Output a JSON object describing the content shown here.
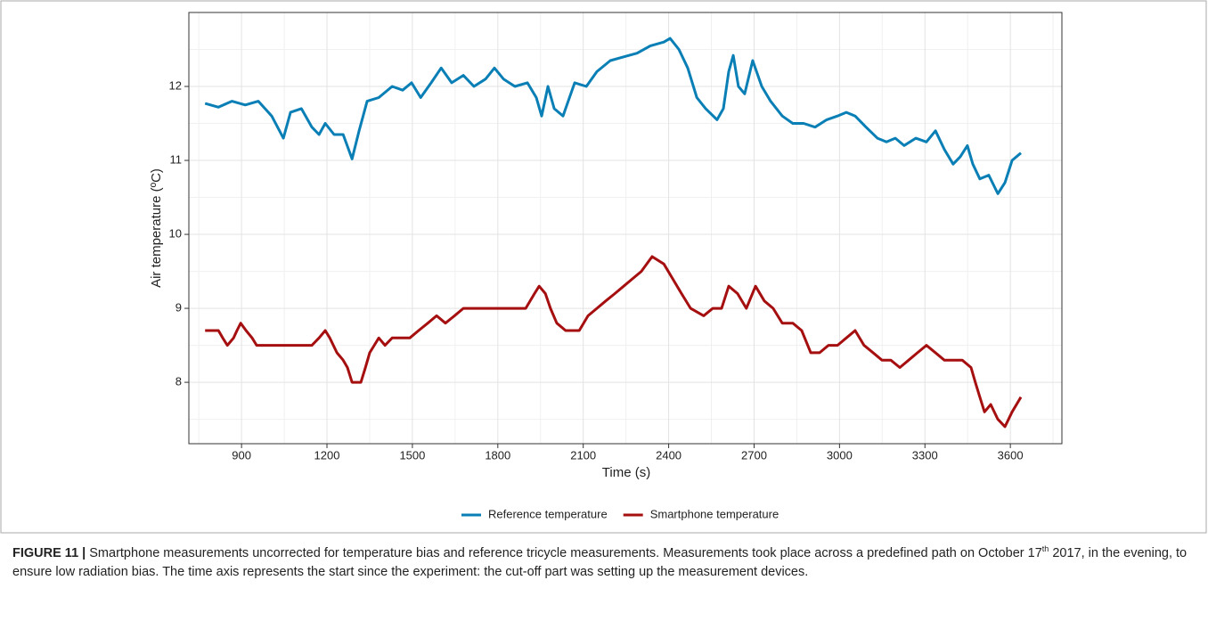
{
  "chart_data": {
    "type": "line",
    "xlabel": "Time (s)",
    "ylabel": "Air temperature (ºC)",
    "xlim": [
      715,
      3781
    ],
    "ylim": [
      7.17,
      13.0
    ],
    "xticks": [
      900,
      1200,
      1500,
      1800,
      2100,
      2400,
      2700,
      3000,
      3300,
      3600
    ],
    "yticks": [
      8,
      9,
      10,
      11,
      12
    ],
    "grid": true,
    "legend": "bottom",
    "series": [
      {
        "name": "Reference temperature",
        "color": "#0a7fb5",
        "x": [
          772,
          819,
          866,
          913,
          959,
          1006,
          1047,
          1072,
          1110,
          1147,
          1172,
          1194,
          1225,
          1257,
          1288,
          1313,
          1341,
          1382,
          1429,
          1466,
          1497,
          1529,
          1566,
          1601,
          1638,
          1679,
          1716,
          1757,
          1788,
          1820,
          1860,
          1904,
          1935,
          1954,
          1976,
          1998,
          2029,
          2070,
          2111,
          2148,
          2195,
          2242,
          2289,
          2336,
          2383,
          2405,
          2436,
          2467,
          2499,
          2530,
          2570,
          2592,
          2611,
          2627,
          2645,
          2667,
          2695,
          2727,
          2758,
          2799,
          2836,
          2874,
          2914,
          2955,
          2993,
          3024,
          3055,
          3093,
          3133,
          3165,
          3196,
          3227,
          3268,
          3305,
          3337,
          3368,
          3399,
          3424,
          3449,
          3468,
          3493,
          3524,
          3556,
          3581,
          3606,
          3637
        ],
        "values": [
          11.77,
          11.72,
          11.8,
          11.75,
          11.8,
          11.6,
          11.3,
          11.65,
          11.7,
          11.45,
          11.35,
          11.5,
          11.35,
          11.35,
          11.02,
          11.4,
          11.8,
          11.85,
          12.0,
          11.95,
          12.05,
          11.85,
          12.05,
          12.25,
          12.05,
          12.15,
          12.0,
          12.1,
          12.25,
          12.1,
          12.0,
          12.05,
          11.85,
          11.6,
          12.0,
          11.7,
          11.6,
          12.05,
          12.0,
          12.2,
          12.35,
          12.4,
          12.45,
          12.55,
          12.6,
          12.65,
          12.5,
          12.25,
          11.85,
          11.7,
          11.55,
          11.7,
          12.2,
          12.42,
          12.0,
          11.9,
          12.35,
          12.0,
          11.8,
          11.6,
          11.5,
          11.5,
          11.45,
          11.55,
          11.6,
          11.65,
          11.6,
          11.45,
          11.3,
          11.25,
          11.3,
          11.2,
          11.3,
          11.25,
          11.4,
          11.15,
          10.95,
          11.05,
          11.2,
          10.95,
          10.75,
          10.8,
          10.55,
          10.7,
          11.0,
          11.1
        ]
      },
      {
        "name": "Smartphone temperature",
        "color": "#a50f0f",
        "x": [
          772,
          819,
          834,
          850,
          872,
          884,
          897,
          916,
          937,
          953,
          1147,
          1172,
          1194,
          1210,
          1235,
          1257,
          1272,
          1288,
          1319,
          1335,
          1350,
          1366,
          1382,
          1404,
          1429,
          1491,
          1522,
          1554,
          1585,
          1616,
          1648,
          1679,
          1898,
          1929,
          1945,
          1967,
          1985,
          2007,
          2038,
          2086,
          2117,
          2148,
          2179,
          2211,
          2242,
          2273,
          2304,
          2342,
          2383,
          2414,
          2445,
          2477,
          2523,
          2555,
          2586,
          2611,
          2642,
          2673,
          2705,
          2736,
          2767,
          2799,
          2836,
          2867,
          2899,
          2930,
          2961,
          2993,
          3024,
          3055,
          3086,
          3118,
          3149,
          3180,
          3212,
          3243,
          3274,
          3305,
          3337,
          3368,
          3431,
          3462,
          3477,
          3493,
          3509,
          3531,
          3556,
          3581,
          3606,
          3637
        ],
        "values": [
          8.7,
          8.7,
          8.6,
          8.5,
          8.6,
          8.7,
          8.8,
          8.7,
          8.6,
          8.5,
          8.5,
          8.6,
          8.7,
          8.6,
          8.4,
          8.3,
          8.2,
          8.0,
          8.0,
          8.2,
          8.4,
          8.5,
          8.6,
          8.5,
          8.6,
          8.6,
          8.7,
          8.8,
          8.9,
          8.8,
          8.9,
          9.0,
          9.0,
          9.2,
          9.3,
          9.2,
          9.0,
          8.8,
          8.7,
          8.7,
          8.9,
          9.0,
          9.1,
          9.2,
          9.3,
          9.4,
          9.5,
          9.7,
          9.6,
          9.4,
          9.2,
          9.0,
          8.9,
          9.0,
          9.0,
          9.3,
          9.2,
          9.0,
          9.3,
          9.1,
          9.0,
          8.8,
          8.8,
          8.7,
          8.4,
          8.4,
          8.5,
          8.5,
          8.6,
          8.7,
          8.5,
          8.4,
          8.3,
          8.3,
          8.2,
          8.3,
          8.4,
          8.5,
          8.4,
          8.3,
          8.3,
          8.2,
          8.0,
          7.8,
          7.6,
          7.7,
          7.5,
          7.4,
          7.6,
          7.8
        ]
      }
    ]
  },
  "caption": {
    "label": "FIGURE 11 |",
    "text_before": "Smartphone measurements uncorrected for temperature bias and reference tricycle measurements. Measurements took place across a predefined path on October 17",
    "superscript": "th",
    "text_after": "2017, in the evening, to ensure low radiation bias. The time axis represents the start since the experiment: the cut-off part was setting up the measurement devices."
  }
}
